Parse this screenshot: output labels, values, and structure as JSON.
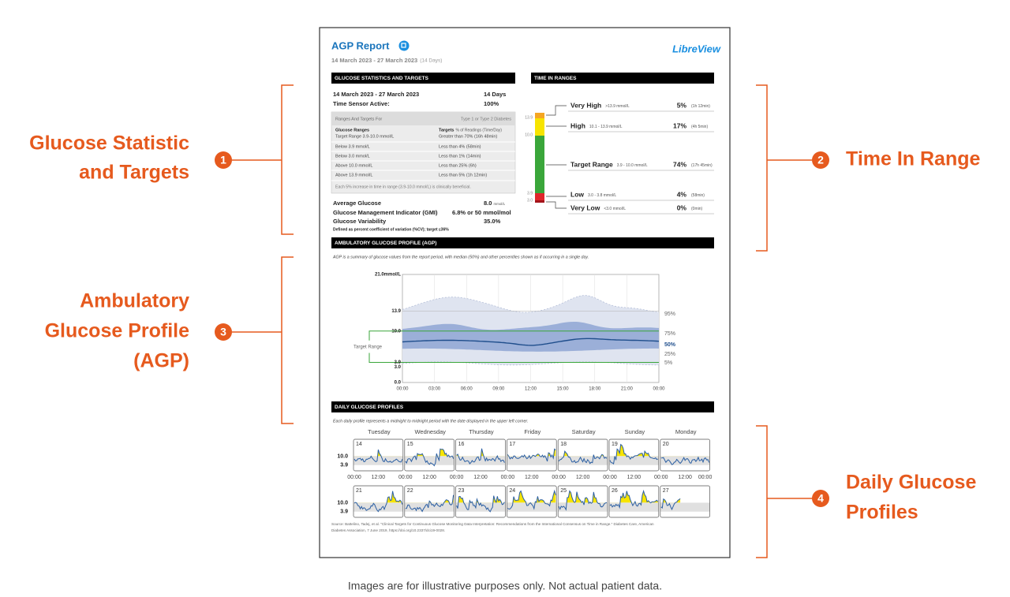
{
  "callouts": [
    {
      "number": "1",
      "label_lines": [
        "Glucose Statistic",
        "and Targets"
      ]
    },
    {
      "number": "2",
      "label_lines": [
        "Time In Range"
      ]
    },
    {
      "number": "3",
      "label_lines": [
        "Ambulatory",
        "Glucose Profile",
        "(AGP)"
      ]
    },
    {
      "number": "4",
      "label_lines": [
        "Daily Glucose",
        "Profiles"
      ]
    }
  ],
  "report": {
    "title": "AGP Report",
    "brand": "LibreView",
    "period": "14 March 2023 - 27 March 2023",
    "period_days": "(14 Days)",
    "glucose_statistics": {
      "heading": "GLUCOSE STATISTICS AND TARGETS",
      "summary": [
        [
          "14 March 2023 - 27 March 2023",
          "14 Days"
        ],
        [
          "Time Sensor Active:",
          "100%"
        ]
      ],
      "targets_header": [
        "Ranges And Targets For",
        "Type 1 or Type 2 Diabetes"
      ],
      "targets_columns": [
        "Glucose Ranges",
        "Targets",
        "% of Readings (Time/Day)"
      ],
      "targets_rows": [
        [
          "Target Range 3.9-10.0 mmol/L",
          "Greater than 70% (16h 48min)"
        ],
        [
          "Below 3.9 mmol/L",
          "Less than 4% (58min)"
        ],
        [
          "Below 3.0 mmol/L",
          "Less than 1% (14min)"
        ],
        [
          "Above 10.0 mmol/L",
          "Less than 25% (6h)"
        ],
        [
          "Above 13.9 mmol/L",
          "Less than 5% (1h 12min)"
        ]
      ],
      "targets_note": "Each 5% increase in time in range (3.9-10.0 mmol/L) is clinically beneficial.",
      "metrics": [
        [
          "Average Glucose",
          "8.0",
          "mmol/L"
        ],
        [
          "Glucose Management Indicator (GMI)",
          "6.8% or 50 mmol/mol"
        ],
        [
          "Glucose Variability",
          "35.0%"
        ]
      ],
      "variability_note": "Defined as percent coefficient of variation (%CV); target ≤36%"
    },
    "time_in_ranges": {
      "heading": "TIME IN RANGES",
      "axis": [
        "13.9",
        "10.0",
        "3.9",
        "3.0"
      ],
      "ranges": [
        {
          "name": "Very High",
          "range": ">13.9 mmol/L",
          "percent": "5%",
          "time": "(1h 12min)"
        },
        {
          "name": "High",
          "range": "10.1 - 13.9 mmol/L",
          "percent": "17%",
          "time": "(4h 5min)"
        },
        {
          "name": "Target Range",
          "range": "3.9 - 10.0 mmol/L",
          "percent": "74%",
          "time": "(17h 45min)"
        },
        {
          "name": "Low",
          "range": "3.0 - 3.8 mmol/L",
          "percent": "4%",
          "time": "(58min)"
        },
        {
          "name": "Very Low",
          "range": "<3.0 mmol/L",
          "percent": "0%",
          "time": "(0min)"
        }
      ]
    },
    "agp": {
      "heading": "AMBULATORY GLUCOSE PROFILE (AGP)",
      "description": "AGP is a summary of glucose values from the report period, with median (50%) and other percentiles shown as if occurring in a single day.",
      "y_labels": [
        "21.0mmol/L",
        "13.9",
        "10.0",
        "3.9",
        "3.0",
        "0.0"
      ],
      "x_labels": [
        "00:00",
        "03:00",
        "06:00",
        "09:00",
        "12:00",
        "15:00",
        "18:00",
        "21:00",
        "00:00"
      ],
      "percentile_labels": [
        "95%",
        "75%",
        "50%",
        "25%",
        "5%"
      ],
      "target_label": "Target Range"
    },
    "daily": {
      "heading": "DAILY GLUCOSE PROFILES",
      "description": "Each daily profile represents a midnight to midnight period with the date displayed in the upper left corner.",
      "weekdays": [
        "Tuesday",
        "Wednesday",
        "Thursday",
        "Friday",
        "Saturday",
        "Sunday",
        "Monday"
      ],
      "weeks": [
        [
          "14",
          "15",
          "16",
          "17",
          "18",
          "19",
          "20"
        ],
        [
          "21",
          "22",
          "23",
          "24",
          "25",
          "26",
          "27"
        ]
      ],
      "y_labels": [
        "10.0",
        "3.9"
      ],
      "x_labels": [
        "00:00",
        "12:00"
      ]
    },
    "source": [
      "Source: Battelino, Tadej, et al. \"Clinical Targets for Continuous Glucose Monitoring Data Interpretation: Recommendations from the International Consensus on Time in Range.\" Diabetes Care, American",
      "Diabetes Association, 7 June 2019, https://doi.org/10.2337/dci19-0028."
    ]
  },
  "disclaimer": "Images are for illustrative purposes only. Not actual patient data."
}
